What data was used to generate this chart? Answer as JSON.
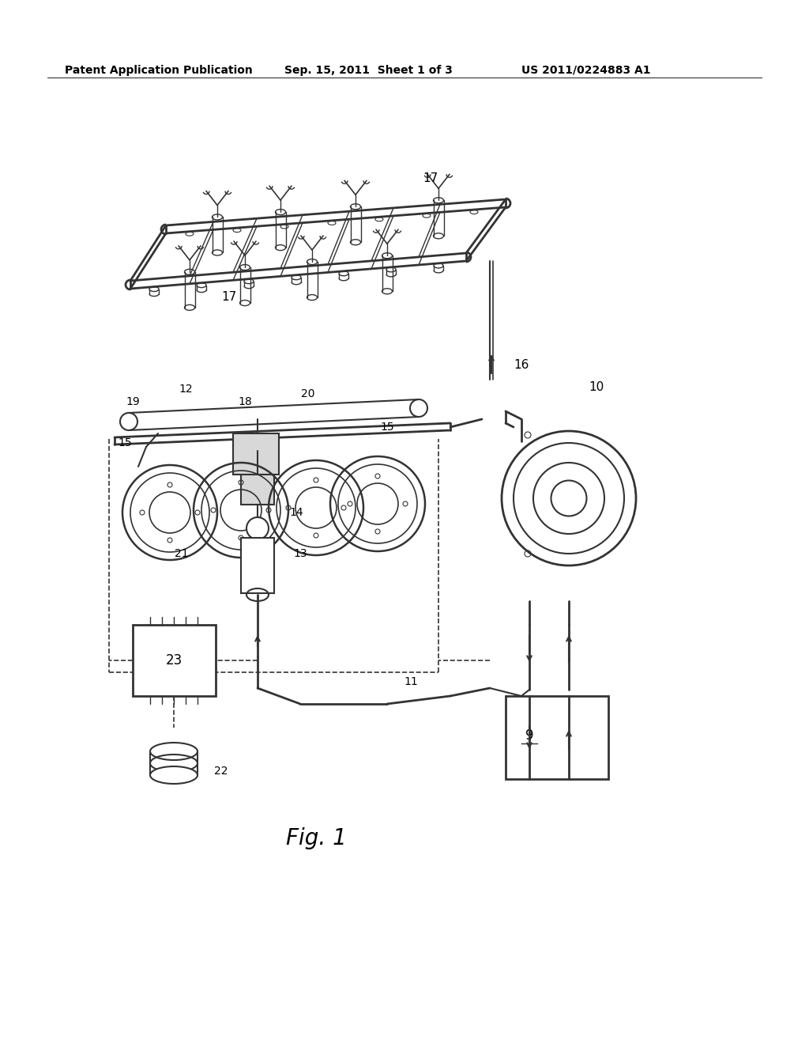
{
  "background_color": "#ffffff",
  "header_left": "Patent Application Publication",
  "header_center": "Sep. 15, 2011  Sheet 1 of 3",
  "header_right": "US 2011/0224883 A1",
  "figure_label": "Fig. 1"
}
